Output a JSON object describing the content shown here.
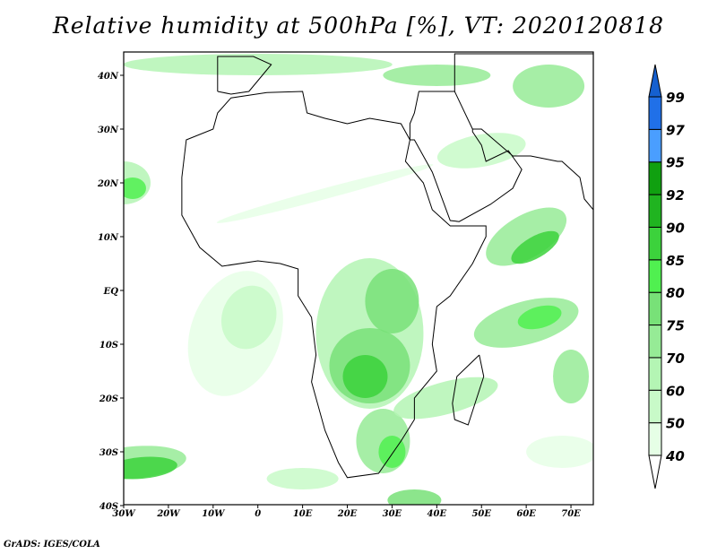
{
  "title": "Relative humidity at 500hPa [%], VT: 2020120818",
  "credit": "GrADS: IGES/COLA",
  "map": {
    "lon_range": [
      -30,
      75
    ],
    "lat_range": [
      -40,
      44
    ],
    "lon_labels": [
      "30W",
      "20W",
      "10W",
      "0",
      "10E",
      "20E",
      "30E",
      "40E",
      "50E",
      "60E",
      "70E"
    ],
    "lon_values": [
      -30,
      -20,
      -10,
      0,
      10,
      20,
      30,
      40,
      50,
      60,
      70
    ],
    "lat_labels": [
      "40N",
      "30N",
      "20N",
      "10N",
      "EQ",
      "10S",
      "20S",
      "30S",
      "40S"
    ],
    "lat_values": [
      40,
      30,
      20,
      10,
      0,
      -10,
      -20,
      -30,
      -40
    ]
  },
  "colorbar": {
    "levels": [
      "40",
      "50",
      "60",
      "70",
      "75",
      "80",
      "85",
      "90",
      "92",
      "95",
      "97",
      "99"
    ],
    "colors": [
      "#e6ffe6",
      "#c8fac8",
      "#b4f5b4",
      "#96eb96",
      "#78e178",
      "#50f050",
      "#3cd23c",
      "#20b420",
      "#10a010",
      "#4a9eff",
      "#2070e8",
      "#1560d0"
    ],
    "below_color": "#ffffff"
  }
}
